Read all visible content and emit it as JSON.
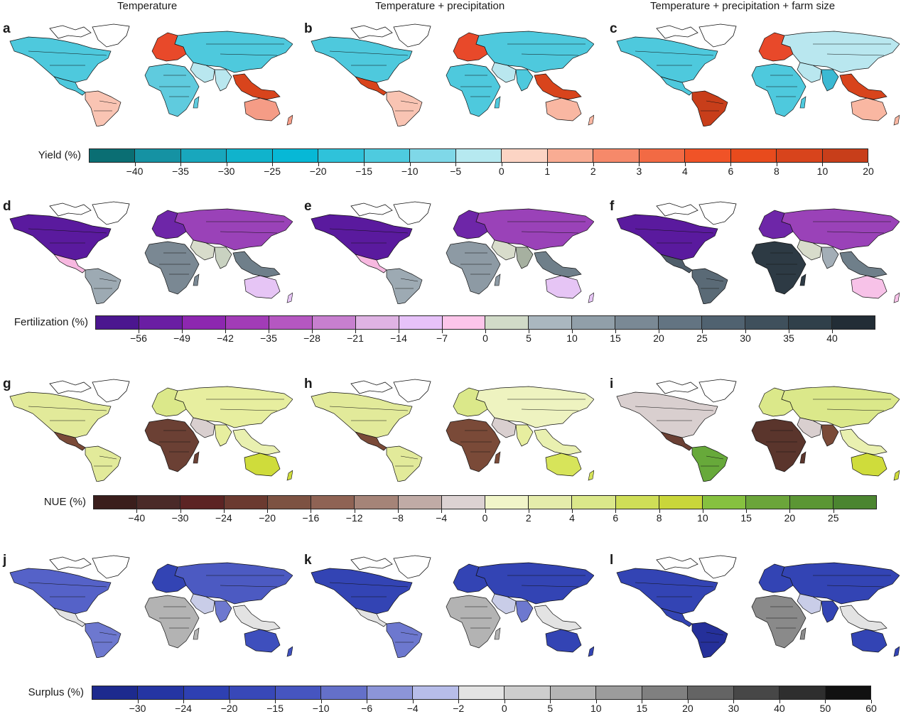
{
  "column_titles": [
    "Temperature",
    "Temperature + precipitation",
    "Temperature + precipitation + farm size"
  ],
  "panels": [
    {
      "letter": "a",
      "row": 0,
      "col": 0,
      "c": {
        "na": "#4ec9dd",
        "ca": "#4ec9dd",
        "sa": "#f9c4b3",
        "eu": "#e8492a",
        "af": "#5fcbde",
        "me": "#b9e7ef",
        "as": "#4ec9dd",
        "in": "#b9e7ef",
        "sea": "#d8441c",
        "au": "#f59c86",
        "gr": "#ffffff"
      }
    },
    {
      "letter": "b",
      "row": 0,
      "col": 1,
      "c": {
        "na": "#4ec9dd",
        "ca": "#d8441c",
        "sa": "#f9c4b3",
        "eu": "#e8492a",
        "af": "#4ec9dd",
        "me": "#b9e7ef",
        "as": "#4ec9dd",
        "in": "#4ec9dd",
        "sea": "#d8441c",
        "au": "#f9b7a2",
        "gr": "#ffffff"
      }
    },
    {
      "letter": "c",
      "row": 0,
      "col": 2,
      "c": {
        "na": "#4ec9dd",
        "ca": "#4ec9dd",
        "sa": "#c83e1a",
        "eu": "#e8492a",
        "af": "#4ec9dd",
        "me": "#b9e7ef",
        "as": "#b9e7ef",
        "in": "#3bb9d3",
        "sea": "#d8441c",
        "au": "#f9b7a2",
        "gr": "#ffffff"
      }
    },
    {
      "letter": "d",
      "row": 1,
      "col": 0,
      "c": {
        "na": "#5a1a9e",
        "ca": "#f7b8e0",
        "sa": "#9daab3",
        "eu": "#6e26a8",
        "af": "#7a8893",
        "me": "#d8dccb",
        "as": "#9a42b8",
        "in": "#c9d2c1",
        "sea": "#6f7f8a",
        "au": "#e6c5f5",
        "gr": "#ffffff"
      }
    },
    {
      "letter": "e",
      "row": 1,
      "col": 1,
      "c": {
        "na": "#5a1a9e",
        "ca": "#f7b8e0",
        "sa": "#9daab3",
        "eu": "#6e26a8",
        "af": "#8d9aa4",
        "me": "#d8dccb",
        "as": "#9a42b8",
        "in": "#a6b0a0",
        "sea": "#6f7f8a",
        "au": "#e6c5f5",
        "gr": "#ffffff"
      }
    },
    {
      "letter": "f",
      "row": 1,
      "col": 2,
      "c": {
        "na": "#5a1a9e",
        "ca": "#4f5e6a",
        "sa": "#5a6a76",
        "eu": "#6e26a8",
        "af": "#2d3a44",
        "me": "#d8dccb",
        "as": "#9a42b8",
        "in": "#a3aeb7",
        "sea": "#6f7f8a",
        "au": "#f7c2e8",
        "gr": "#ffffff"
      }
    },
    {
      "letter": "g",
      "row": 2,
      "col": 0,
      "c": {
        "na": "#e2ea9a",
        "ca": "#7a4a38",
        "sa": "#e2ea9a",
        "eu": "#dbe88a",
        "af": "#6b4034",
        "me": "#d9cfcf",
        "as": "#e7ee9f",
        "in": "#e7ee9f",
        "sea": "#e9f0b0",
        "au": "#cfdc3b",
        "gr": "#ffffff"
      }
    },
    {
      "letter": "h",
      "row": 2,
      "col": 1,
      "c": {
        "na": "#e2ea9a",
        "ca": "#7a4a38",
        "sa": "#e2ea9a",
        "eu": "#dbe88a",
        "af": "#7a4a38",
        "me": "#d9cfcf",
        "as": "#eef3c0",
        "in": "#e7ee9f",
        "sea": "#e9f0b0",
        "au": "#d7e45a",
        "gr": "#ffffff"
      }
    },
    {
      "letter": "i",
      "row": 2,
      "col": 2,
      "c": {
        "na": "#d9cfcf",
        "ca": "#6b4034",
        "sa": "#67a93a",
        "eu": "#dbe88a",
        "af": "#5a352c",
        "me": "#d9cfcf",
        "as": "#dbe88a",
        "in": "#7a4a38",
        "sea": "#e9f0b0",
        "au": "#cfdc3b",
        "gr": "#ffffff"
      }
    },
    {
      "letter": "j",
      "row": 3,
      "col": 0,
      "c": {
        "na": "#5562c8",
        "ca": "#e3e3e3",
        "sa": "#6d78cf",
        "eu": "#3344b4",
        "af": "#b3b3b3",
        "me": "#c9cde8",
        "as": "#4c5ac2",
        "in": "#6d78cf",
        "sea": "#e3e3e3",
        "au": "#3e4fbd",
        "gr": "#ffffff"
      }
    },
    {
      "letter": "k",
      "row": 3,
      "col": 1,
      "c": {
        "na": "#3344b4",
        "ca": "#e3e3e3",
        "sa": "#6d78cf",
        "eu": "#3344b4",
        "af": "#b3b3b3",
        "me": "#c9cde8",
        "as": "#3344b4",
        "in": "#6d78cf",
        "sea": "#e3e3e3",
        "au": "#3344b4",
        "gr": "#ffffff"
      }
    },
    {
      "letter": "l",
      "row": 3,
      "col": 2,
      "c": {
        "na": "#3344b4",
        "ca": "#3344b4",
        "sa": "#25309a",
        "eu": "#3344b4",
        "af": "#8a8a8a",
        "me": "#c9cde8",
        "as": "#3344b4",
        "in": "#3344b4",
        "sea": "#e3e3e3",
        "au": "#3344b4",
        "gr": "#ffffff"
      }
    }
  ],
  "colorbars": [
    {
      "label": "Yield (%)",
      "colors": [
        "#0a6e73",
        "#1592a3",
        "#18a7bd",
        "#10b3cc",
        "#07b8d6",
        "#2fc2da",
        "#4ecbdf",
        "#7fd8e8",
        "#b6e9f0",
        "#fcd4c4",
        "#f9ac93",
        "#f6896a",
        "#f26a44",
        "#f05327",
        "#e84b1d",
        "#d8441c",
        "#c83e1a"
      ],
      "ticks": [
        "−40",
        "−35",
        "−30",
        "−25",
        "−20",
        "−15",
        "−10",
        "−5",
        "0",
        "1",
        "2",
        "3",
        "4",
        "6",
        "8",
        "10",
        "20"
      ]
    },
    {
      "label": "Fertilization (%)",
      "colors": [
        "#4b168f",
        "#6a1ea3",
        "#8d27b0",
        "#a23cb7",
        "#b557c1",
        "#c77fcf",
        "#dfb3e4",
        "#e7c2f9",
        "#fcc5ea",
        "#d1dbc8",
        "#aab7bf",
        "#919fa9",
        "#7a8995",
        "#637482",
        "#506270",
        "#3f505c",
        "#30404a",
        "#222d36"
      ],
      "ticks": [
        "−56",
        "−49",
        "−42",
        "−35",
        "−28",
        "−21",
        "−14",
        "−7",
        "0",
        "5",
        "10",
        "15",
        "20",
        "25",
        "30",
        "35",
        "40"
      ]
    },
    {
      "label": "NUE (%)",
      "colors": [
        "#3a1e1c",
        "#4a2a28",
        "#5c2424",
        "#6b3a30",
        "#7d5242",
        "#8f6354",
        "#a58478",
        "#c0aba6",
        "#dcd2d2",
        "#f1f5c9",
        "#e5ecab",
        "#dbe88a",
        "#cfde57",
        "#c9d63a",
        "#86c13f",
        "#6ba53a",
        "#5b9634",
        "#4b8530"
      ],
      "ticks": [
        "−40",
        "−30",
        "−24",
        "−20",
        "−16",
        "−12",
        "−8",
        "−4",
        "0",
        "2",
        "4",
        "6",
        "8",
        "10",
        "15",
        "20",
        "25"
      ]
    },
    {
      "label": "Surplus (%)",
      "colors": [
        "#1d2a8e",
        "#2535a3",
        "#2e40b2",
        "#3848b8",
        "#4655c0",
        "#6470c9",
        "#8c95d8",
        "#b7bde9",
        "#e3e3e3",
        "#cdcdcd",
        "#b5b5b5",
        "#9c9c9c",
        "#808080",
        "#646464",
        "#474747",
        "#2e2e2e",
        "#111111"
      ],
      "ticks": [
        "−30",
        "−24",
        "−20",
        "−15",
        "−10",
        "−6",
        "−4",
        "−2",
        "0",
        "5",
        "10",
        "15",
        "20",
        "30",
        "40",
        "50",
        "60"
      ]
    }
  ]
}
